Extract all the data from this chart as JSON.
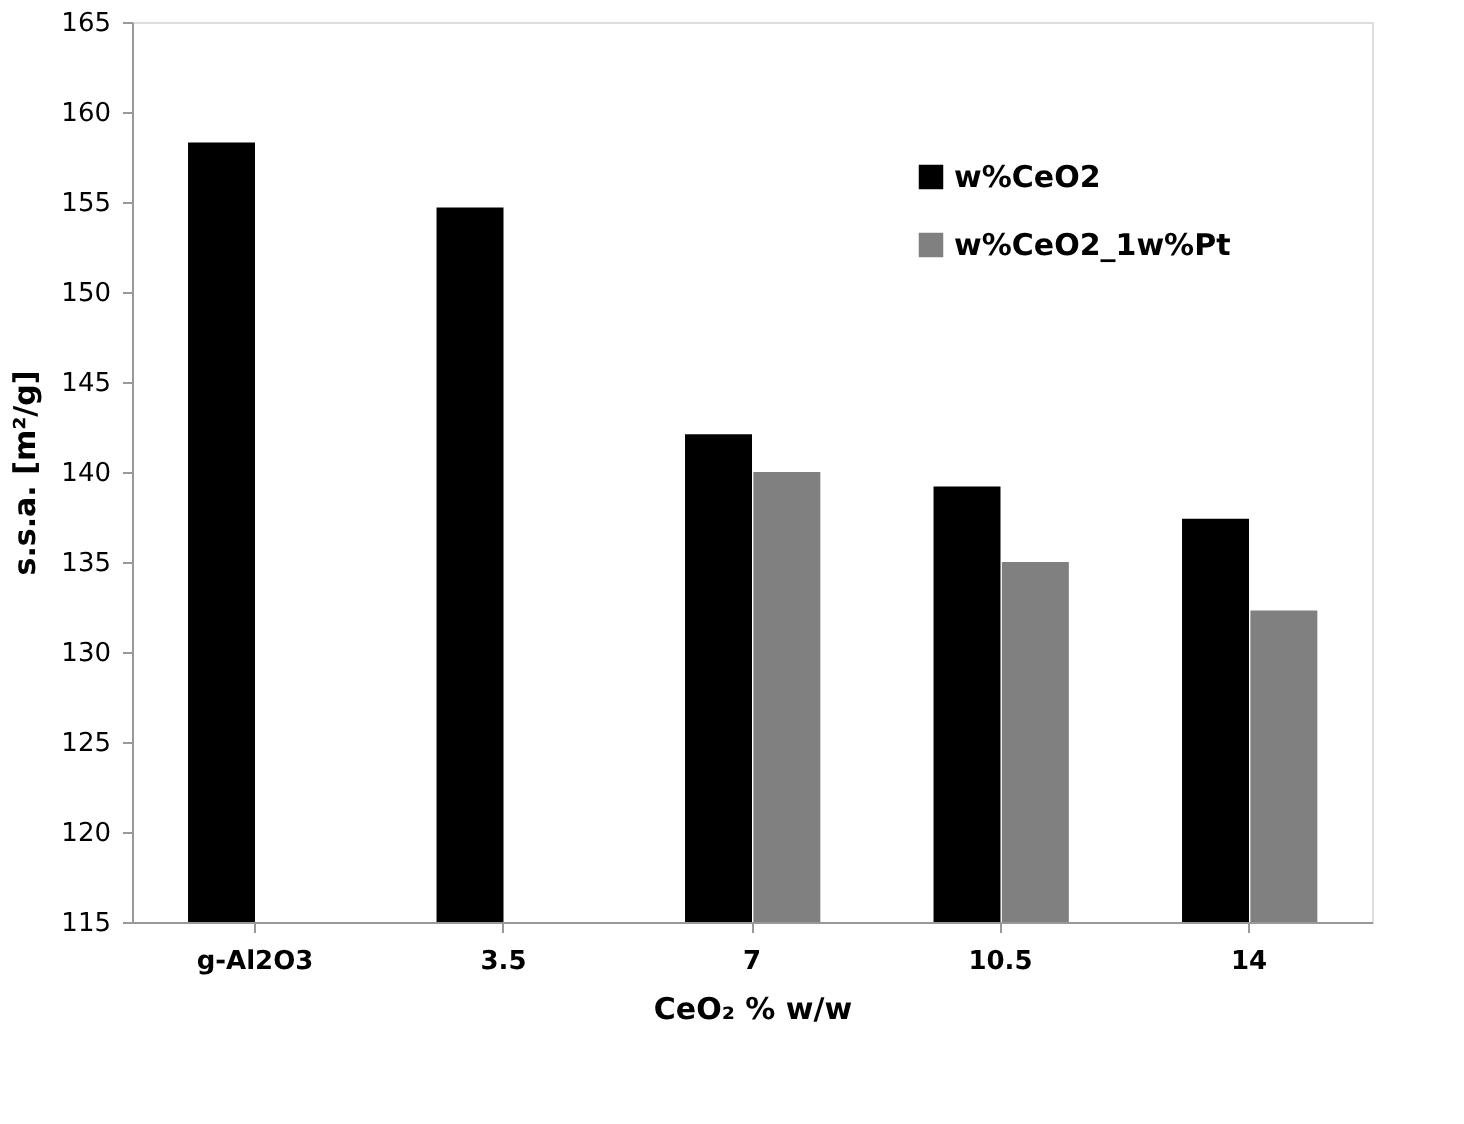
{
  "chart_data": {
    "type": "bar",
    "xlabel": "CeO₂ % w/w",
    "ylabel": "s.s.a.  [m²/g]",
    "categories": [
      "g-Al2O3",
      "3.5",
      "7",
      "10.5",
      "14"
    ],
    "series": [
      {
        "name": "w%CeO2",
        "color": "#000000",
        "values": [
          158.3,
          154.7,
          142.1,
          139.2,
          137.4
        ]
      },
      {
        "name": "w%CeO2_1w%Pt",
        "color": "#808080",
        "values": [
          null,
          null,
          140.0,
          135.0,
          132.3
        ]
      }
    ],
    "ylim": [
      115,
      165
    ],
    "yticks": [
      115,
      120,
      125,
      130,
      135,
      140,
      145,
      150,
      155,
      160,
      165
    ],
    "grid": false,
    "legend": "top right"
  }
}
